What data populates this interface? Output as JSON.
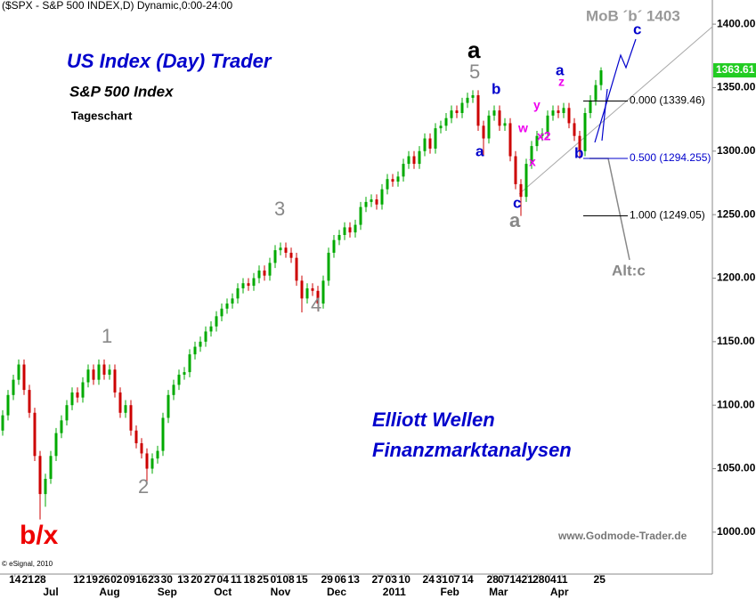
{
  "chart_data": {
    "type": "candlestick",
    "title": "($SPX - S&P 500 INDEX,D) Dynamic,0:00-24:00",
    "up_color": "#00aa00",
    "down_color": "#cc0000",
    "ylim": [
      967,
      1419
    ],
    "yticks": [
      {
        "value": 1000,
        "label": "1000.00"
      },
      {
        "value": 1050,
        "label": "1050.00"
      },
      {
        "value": 1100,
        "label": "1100.00"
      },
      {
        "value": 1150,
        "label": "1150.00"
      },
      {
        "value": 1200,
        "label": "1200.00"
      },
      {
        "value": 1250,
        "label": "1250.00"
      },
      {
        "value": 1300,
        "label": "1300.00"
      },
      {
        "value": 1350,
        "label": "1350.00"
      },
      {
        "value": 1400,
        "label": "1400.00"
      }
    ],
    "xticks": [
      {
        "value": 2.3,
        "label": "14"
      },
      {
        "value": 4.7,
        "label": "21"
      },
      {
        "value": 7,
        "label": "28"
      },
      {
        "value": 14.3,
        "label": "12"
      },
      {
        "value": 16.7,
        "label": "19"
      },
      {
        "value": 19,
        "label": "26"
      },
      {
        "value": 21.3,
        "label": "02"
      },
      {
        "value": 23.7,
        "label": "09"
      },
      {
        "value": 26,
        "label": "16"
      },
      {
        "value": 28.3,
        "label": "23"
      },
      {
        "value": 30.7,
        "label": "30"
      },
      {
        "value": 33.8,
        "label": "13"
      },
      {
        "value": 36.3,
        "label": "20"
      },
      {
        "value": 38.8,
        "label": "27"
      },
      {
        "value": 41.2,
        "label": "04"
      },
      {
        "value": 43.7,
        "label": "11"
      },
      {
        "value": 46.2,
        "label": "18"
      },
      {
        "value": 48.7,
        "label": "25"
      },
      {
        "value": 51.2,
        "label": "01"
      },
      {
        "value": 53.5,
        "label": "08"
      },
      {
        "value": 56,
        "label": "15"
      },
      {
        "value": 60.7,
        "label": "29"
      },
      {
        "value": 63.2,
        "label": "06"
      },
      {
        "value": 65.7,
        "label": "13"
      },
      {
        "value": 70.2,
        "label": "27"
      },
      {
        "value": 72.7,
        "label": "03"
      },
      {
        "value": 75.2,
        "label": "10"
      },
      {
        "value": 79.7,
        "label": "24"
      },
      {
        "value": 82.2,
        "label": "31"
      },
      {
        "value": 84.5,
        "label": "07"
      },
      {
        "value": 87,
        "label": "14"
      },
      {
        "value": 91.7,
        "label": "28"
      },
      {
        "value": 93.8,
        "label": "07"
      },
      {
        "value": 96,
        "label": "14"
      },
      {
        "value": 98.2,
        "label": "21"
      },
      {
        "value": 100.3,
        "label": "28"
      },
      {
        "value": 102.5,
        "label": "04"
      },
      {
        "value": 104.7,
        "label": "11"
      },
      {
        "value": 111.7,
        "label": "25"
      }
    ],
    "month_ticks": [
      {
        "value": 9,
        "label": "Jul"
      },
      {
        "value": 20,
        "label": "Aug"
      },
      {
        "value": 30.8,
        "label": "Sep"
      },
      {
        "value": 41.2,
        "label": "Oct"
      },
      {
        "value": 52,
        "label": "Nov"
      },
      {
        "value": 62.5,
        "label": "Dec"
      },
      {
        "value": 73.3,
        "label": "2011"
      },
      {
        "value": 83.7,
        "label": "Feb"
      },
      {
        "value": 92.8,
        "label": "Mar"
      },
      {
        "value": 104.2,
        "label": "Apr"
      }
    ],
    "ohlc": [
      [
        1080,
        1096,
        1076,
        1092
      ],
      [
        1092,
        1112,
        1088,
        1108
      ],
      [
        1108,
        1124,
        1104,
        1120
      ],
      [
        1120,
        1136,
        1116,
        1132
      ],
      [
        1132,
        1136,
        1108,
        1112
      ],
      [
        1112,
        1116,
        1090,
        1094
      ],
      [
        1094,
        1098,
        1056,
        1060
      ],
      [
        1060,
        1064,
        1010,
        1030
      ],
      [
        1030,
        1046,
        1020,
        1042
      ],
      [
        1042,
        1064,
        1038,
        1060
      ],
      [
        1060,
        1082,
        1056,
        1078
      ],
      [
        1078,
        1092,
        1074,
        1088
      ],
      [
        1088,
        1104,
        1084,
        1100
      ],
      [
        1100,
        1114,
        1096,
        1110
      ],
      [
        1110,
        1114,
        1102,
        1106
      ],
      [
        1106,
        1122,
        1102,
        1118
      ],
      [
        1118,
        1132,
        1114,
        1128
      ],
      [
        1128,
        1132,
        1116,
        1120
      ],
      [
        1120,
        1136,
        1116,
        1132
      ],
      [
        1132,
        1136,
        1120,
        1124
      ],
      [
        1124,
        1132,
        1120,
        1128
      ],
      [
        1128,
        1132,
        1106,
        1110
      ],
      [
        1110,
        1114,
        1090,
        1094
      ],
      [
        1094,
        1104,
        1090,
        1100
      ],
      [
        1100,
        1104,
        1076,
        1080
      ],
      [
        1080,
        1084,
        1066,
        1070
      ],
      [
        1070,
        1074,
        1058,
        1062
      ],
      [
        1062,
        1066,
        1040,
        1050
      ],
      [
        1050,
        1062,
        1046,
        1058
      ],
      [
        1058,
        1068,
        1054,
        1064
      ],
      [
        1064,
        1094,
        1060,
        1090
      ],
      [
        1090,
        1112,
        1086,
        1108
      ],
      [
        1108,
        1120,
        1104,
        1116
      ],
      [
        1116,
        1128,
        1112,
        1124
      ],
      [
        1124,
        1130,
        1120,
        1126
      ],
      [
        1126,
        1144,
        1122,
        1140
      ],
      [
        1140,
        1150,
        1136,
        1146
      ],
      [
        1146,
        1154,
        1142,
        1150
      ],
      [
        1150,
        1162,
        1146,
        1158
      ],
      [
        1158,
        1166,
        1154,
        1162
      ],
      [
        1162,
        1174,
        1158,
        1170
      ],
      [
        1170,
        1180,
        1166,
        1176
      ],
      [
        1176,
        1184,
        1172,
        1180
      ],
      [
        1180,
        1188,
        1176,
        1184
      ],
      [
        1184,
        1196,
        1180,
        1192
      ],
      [
        1192,
        1200,
        1188,
        1196
      ],
      [
        1196,
        1200,
        1190,
        1194
      ],
      [
        1194,
        1204,
        1190,
        1200
      ],
      [
        1200,
        1210,
        1196,
        1206
      ],
      [
        1206,
        1210,
        1198,
        1202
      ],
      [
        1202,
        1216,
        1198,
        1212
      ],
      [
        1212,
        1226,
        1208,
        1222
      ],
      [
        1222,
        1228,
        1218,
        1224
      ],
      [
        1224,
        1228,
        1216,
        1220
      ],
      [
        1220,
        1224,
        1212,
        1216
      ],
      [
        1216,
        1220,
        1194,
        1198
      ],
      [
        1198,
        1202,
        1173,
        1184
      ],
      [
        1184,
        1196,
        1180,
        1192
      ],
      [
        1192,
        1196,
        1186,
        1190
      ],
      [
        1190,
        1194,
        1174,
        1180
      ],
      [
        1180,
        1202,
        1176,
        1198
      ],
      [
        1198,
        1224,
        1194,
        1220
      ],
      [
        1220,
        1234,
        1216,
        1230
      ],
      [
        1230,
        1238,
        1226,
        1234
      ],
      [
        1234,
        1244,
        1230,
        1240
      ],
      [
        1240,
        1244,
        1232,
        1236
      ],
      [
        1236,
        1246,
        1232,
        1242
      ],
      [
        1242,
        1260,
        1238,
        1256
      ],
      [
        1256,
        1264,
        1252,
        1260
      ],
      [
        1260,
        1266,
        1256,
        1262
      ],
      [
        1262,
        1266,
        1254,
        1258
      ],
      [
        1258,
        1274,
        1254,
        1270
      ],
      [
        1270,
        1282,
        1266,
        1278
      ],
      [
        1278,
        1282,
        1272,
        1276
      ],
      [
        1276,
        1284,
        1272,
        1280
      ],
      [
        1280,
        1294,
        1276,
        1290
      ],
      [
        1290,
        1300,
        1286,
        1296
      ],
      [
        1296,
        1300,
        1286,
        1290
      ],
      [
        1290,
        1304,
        1286,
        1300
      ],
      [
        1300,
        1314,
        1296,
        1310
      ],
      [
        1310,
        1314,
        1298,
        1302
      ],
      [
        1302,
        1322,
        1298,
        1318
      ],
      [
        1318,
        1324,
        1314,
        1320
      ],
      [
        1320,
        1330,
        1316,
        1326
      ],
      [
        1326,
        1336,
        1322,
        1332
      ],
      [
        1332,
        1336,
        1326,
        1330
      ],
      [
        1330,
        1342,
        1326,
        1338
      ],
      [
        1338,
        1346,
        1334,
        1342
      ],
      [
        1342,
        1348,
        1338,
        1344
      ],
      [
        1344,
        1348,
        1316,
        1320
      ],
      [
        1320,
        1324,
        1296,
        1310
      ],
      [
        1310,
        1332,
        1306,
        1328
      ],
      [
        1328,
        1336,
        1324,
        1332
      ],
      [
        1332,
        1336,
        1316,
        1320
      ],
      [
        1320,
        1326,
        1316,
        1322
      ],
      [
        1322,
        1326,
        1292,
        1296
      ],
      [
        1296,
        1300,
        1270,
        1274
      ],
      [
        1274,
        1278,
        1249,
        1264
      ],
      [
        1264,
        1294,
        1260,
        1290
      ],
      [
        1290,
        1308,
        1286,
        1304
      ],
      [
        1304,
        1316,
        1300,
        1312
      ],
      [
        1312,
        1318,
        1308,
        1314
      ],
      [
        1314,
        1332,
        1310,
        1328
      ],
      [
        1328,
        1336,
        1324,
        1332
      ],
      [
        1332,
        1336,
        1326,
        1330
      ],
      [
        1330,
        1338,
        1326,
        1334
      ],
      [
        1334,
        1338,
        1318,
        1322
      ],
      [
        1322,
        1326,
        1308,
        1312
      ],
      [
        1312,
        1316,
        1294,
        1300
      ],
      [
        1300,
        1334,
        1296,
        1330
      ],
      [
        1330,
        1344,
        1326,
        1340
      ],
      [
        1340,
        1356,
        1336,
        1352
      ],
      [
        1352,
        1366,
        1348,
        1363.61
      ]
    ],
    "fib_levels": [
      {
        "value": 1339.46,
        "label": "0.000 (1339.46)",
        "color": "#000000"
      },
      {
        "value": 1294.255,
        "label": "0.500 (1294.255)",
        "color": "#0000cc"
      },
      {
        "value": 1249.05,
        "label": "1.000 (1249.05)",
        "color": "#000000"
      }
    ],
    "annotations": [
      {
        "text": "US Index (Day) Trader",
        "color": "#0000cc"
      },
      {
        "text": "S&P 500 Index",
        "color": "#000000"
      },
      {
        "text": "Tageschart",
        "color": "#000000"
      },
      {
        "text": "MoB ´b´ 1403",
        "color": "#999999"
      },
      {
        "text": "a",
        "color": "#000000"
      },
      {
        "text": "5",
        "color": "#888888"
      },
      {
        "text": "b",
        "color": "#0000cc"
      },
      {
        "text": "a",
        "color": "#0000cc"
      },
      {
        "text": "w",
        "color": "#ee00ee"
      },
      {
        "text": "x",
        "color": "#ee00ee"
      },
      {
        "text": "y",
        "color": "#ee00ee"
      },
      {
        "text": "x2",
        "color": "#ee00ee"
      },
      {
        "text": "z",
        "color": "#ee00ee"
      },
      {
        "text": "a",
        "color": "#0000cc"
      },
      {
        "text": "c",
        "color": "#0000cc"
      },
      {
        "text": "b",
        "color": "#0000cc"
      },
      {
        "text": "c",
        "color": "#0000cc"
      },
      {
        "text": "a",
        "color": "#888888"
      },
      {
        "text": "Alt:c",
        "color": "#888888"
      },
      {
        "text": "3",
        "color": "#888888"
      },
      {
        "text": "4",
        "color": "#888888"
      },
      {
        "text": "1",
        "color": "#888888"
      },
      {
        "text": "2",
        "color": "#888888"
      },
      {
        "text": "b/x",
        "color": "#ee0000"
      },
      {
        "text": "Elliott Wellen",
        "color": "#0000cc"
      },
      {
        "text": "Finanzmarktanalysen",
        "color": "#0000cc"
      },
      {
        "text": "www.Godmode-Trader.de",
        "color": "#777777"
      },
      {
        "text": "© eSignal, 2010",
        "color": "#000000"
      }
    ]
  }
}
